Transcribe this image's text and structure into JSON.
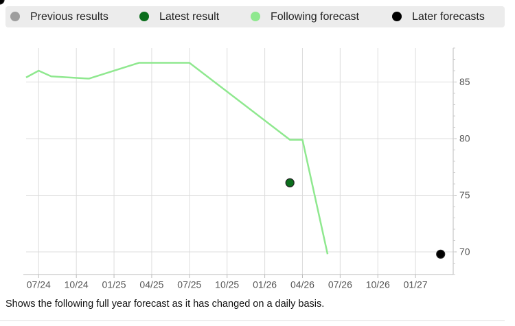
{
  "chart_data": {
    "type": "line",
    "caption": "Shows the following full year forecast as it has changed on a daily basis.",
    "xlim": [
      "2024-06",
      "2027-04"
    ],
    "xticks": [
      {
        "value": "2024-07",
        "label": "07/24"
      },
      {
        "value": "2024-10",
        "label": "10/24"
      },
      {
        "value": "2025-01",
        "label": "01/25"
      },
      {
        "value": "2025-04",
        "label": "04/25"
      },
      {
        "value": "2025-07",
        "label": "07/25"
      },
      {
        "value": "2025-10",
        "label": "10/25"
      },
      {
        "value": "2026-01",
        "label": "01/26"
      },
      {
        "value": "2026-04",
        "label": "04/26"
      },
      {
        "value": "2026-07",
        "label": "07/26"
      },
      {
        "value": "2026-10",
        "label": "10/26"
      },
      {
        "value": "2027-01",
        "label": "01/27"
      }
    ],
    "ylim": [
      68,
      88
    ],
    "yticks": [
      70,
      75,
      80,
      85
    ],
    "y_axis_side": "right",
    "grid": true,
    "series": [
      {
        "name": "Previous results",
        "color": "#9e9e9e",
        "type": "scatter",
        "x": [],
        "values": []
      },
      {
        "name": "Latest result",
        "color": "#0b6e1c",
        "type": "scatter",
        "x": [
          "2026-03"
        ],
        "values": [
          76.1
        ]
      },
      {
        "name": "Following forecast",
        "color": "#8fe88f",
        "type": "line",
        "x": [
          "2024-06",
          "2024-07",
          "2024-08",
          "2024-11",
          "2025-03",
          "2025-07",
          "2026-03",
          "2026-04",
          "2026-06"
        ],
        "values": [
          85.4,
          86.0,
          85.5,
          85.3,
          86.7,
          86.7,
          79.9,
          79.9,
          69.8
        ]
      },
      {
        "name": "Later forecasts",
        "color": "#000000",
        "type": "scatter",
        "x": [
          "2027-03"
        ],
        "values": [
          69.8
        ]
      }
    ]
  }
}
